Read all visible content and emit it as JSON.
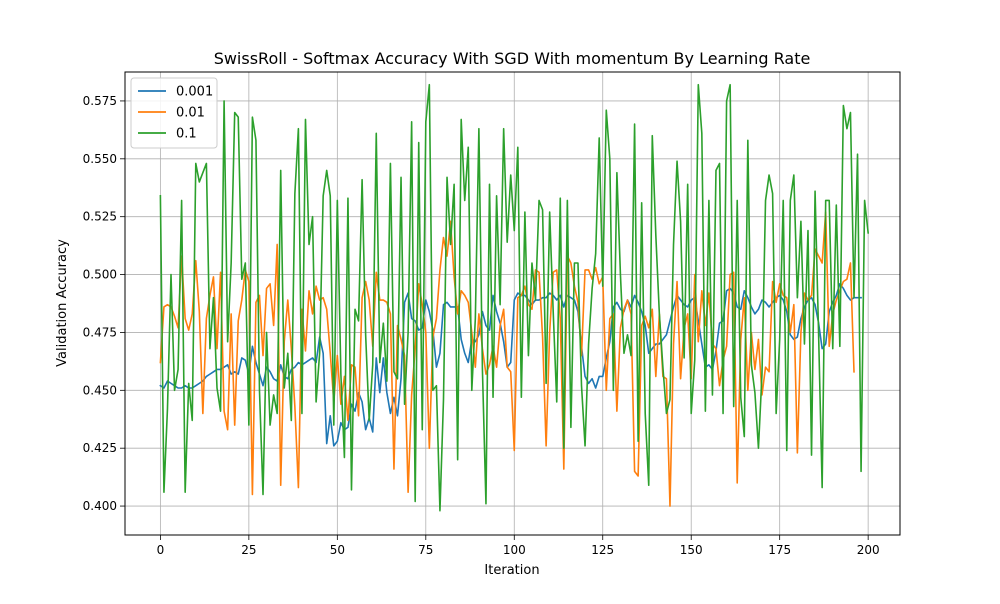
{
  "chart_data": {
    "type": "line",
    "title": "SwissRoll - Softmax Accuracy With SGD With momentum By Learning Rate",
    "xlabel": "Iteration",
    "ylabel": "Validation Accuracy",
    "xlim": [
      -10,
      209
    ],
    "ylim": [
      0.3875,
      0.5875
    ],
    "xticks": [
      0,
      25,
      50,
      75,
      100,
      125,
      150,
      175,
      200
    ],
    "yticks": [
      0.4,
      0.425,
      0.45,
      0.475,
      0.5,
      0.525,
      0.55,
      0.575
    ],
    "xtick_labels": [
      "0",
      "25",
      "50",
      "75",
      "100",
      "125",
      "150",
      "175",
      "200"
    ],
    "ytick_labels": [
      "0.400",
      "0.425",
      "0.450",
      "0.475",
      "0.500",
      "0.525",
      "0.550",
      "0.575"
    ],
    "grid": true,
    "legend_position": "top-left",
    "series": [
      {
        "name": "0.001",
        "color": "#1f77b4",
        "values": [
          0.452,
          0.451,
          0.454,
          0.453,
          0.452,
          0.451,
          0.451,
          0.452,
          0.451,
          0.451,
          0.452,
          0.453,
          0.454,
          0.456,
          0.457,
          0.458,
          0.459,
          0.459,
          0.46,
          0.461,
          0.457,
          0.458,
          0.457,
          0.464,
          0.463,
          0.457,
          0.469,
          0.462,
          0.457,
          0.452,
          0.46,
          0.458,
          0.455,
          0.454,
          0.461,
          0.456,
          0.455,
          0.459,
          0.46,
          0.462,
          0.461,
          0.462,
          0.463,
          0.464,
          0.462,
          0.473,
          0.466,
          0.427,
          0.439,
          0.426,
          0.428,
          0.436,
          0.433,
          0.434,
          0.444,
          0.441,
          0.449,
          0.445,
          0.433,
          0.438,
          0.432,
          0.464,
          0.449,
          0.464,
          0.449,
          0.44,
          0.447,
          0.439,
          0.455,
          0.488,
          0.492,
          0.481,
          0.48,
          0.476,
          0.477,
          0.489,
          0.484,
          0.476,
          0.46,
          0.466,
          0.487,
          0.488,
          0.486,
          0.486,
          0.486,
          0.472,
          0.466,
          0.462,
          0.472,
          0.471,
          0.474,
          0.484,
          0.478,
          0.476,
          0.491,
          0.484,
          0.479,
          0.471,
          0.46,
          0.462,
          0.489,
          0.492,
          0.491,
          0.491,
          0.489,
          0.487,
          0.489,
          0.489,
          0.49,
          0.49,
          0.492,
          0.491,
          0.489,
          0.491,
          0.486,
          0.491,
          0.49,
          0.489,
          0.484,
          0.469,
          0.456,
          0.453,
          0.455,
          0.451,
          0.456,
          0.456,
          0.464,
          0.471,
          0.486,
          0.488,
          0.485,
          0.484,
          0.489,
          0.486,
          0.491,
          0.488,
          0.484,
          0.478,
          0.466,
          0.468,
          0.47,
          0.47,
          0.472,
          0.474,
          0.48,
          0.486,
          0.491,
          0.489,
          0.487,
          0.486,
          0.489,
          0.49,
          0.48,
          0.47,
          0.46,
          0.461,
          0.459,
          0.467,
          0.479,
          0.48,
          0.493,
          0.494,
          0.492,
          0.486,
          0.485,
          0.493,
          0.49,
          0.486,
          0.483,
          0.485,
          0.489,
          0.488,
          0.486,
          0.488,
          0.49,
          0.491,
          0.489,
          0.484,
          0.474,
          0.472,
          0.473,
          0.481,
          0.486,
          0.489,
          0.49,
          0.487,
          0.479,
          0.468,
          0.47,
          0.484,
          0.488,
          0.491,
          0.496,
          0.494,
          0.491,
          0.489,
          0.49,
          0.49,
          0.49
        ]
      },
      {
        "name": "0.01",
        "color": "#ff7f0e",
        "values": [
          0.462,
          0.486,
          0.487,
          0.486,
          0.482,
          0.477,
          0.508,
          0.481,
          0.476,
          0.483,
          0.506,
          0.484,
          0.44,
          0.481,
          0.491,
          0.499,
          0.468,
          0.501,
          0.441,
          0.433,
          0.483,
          0.435,
          0.48,
          0.489,
          0.502,
          0.497,
          0.405,
          0.488,
          0.491,
          0.465,
          0.494,
          0.496,
          0.478,
          0.513,
          0.409,
          0.471,
          0.489,
          0.468,
          0.443,
          0.408,
          0.485,
          0.467,
          0.493,
          0.483,
          0.495,
          0.489,
          0.49,
          0.485,
          0.466,
          0.445,
          0.465,
          0.444,
          0.456,
          0.437,
          0.461,
          0.46,
          0.439,
          0.49,
          0.497,
          0.489,
          0.469,
          0.501,
          0.489,
          0.489,
          0.488,
          0.483,
          0.416,
          0.478,
          0.472,
          0.465,
          0.406,
          0.448,
          0.468,
          0.496,
          0.487,
          0.475,
          0.425,
          0.473,
          0.481,
          0.502,
          0.516,
          0.508,
          0.523,
          0.499,
          0.483,
          0.493,
          0.491,
          0.488,
          0.475,
          0.46,
          0.483,
          0.468,
          0.457,
          0.461,
          0.469,
          0.46,
          0.478,
          0.485,
          0.46,
          0.458,
          0.424,
          0.49,
          0.491,
          0.495,
          0.487,
          0.485,
          0.502,
          0.501,
          0.473,
          0.426,
          0.475,
          0.501,
          0.502,
          0.481,
          0.416,
          0.508,
          0.505,
          0.495,
          0.488,
          0.465,
          0.502,
          0.502,
          0.498,
          0.503,
          0.496,
          0.499,
          0.45,
          0.481,
          0.483,
          0.441,
          0.477,
          0.485,
          0.489,
          0.483,
          0.415,
          0.413,
          0.478,
          0.482,
          0.477,
          0.485,
          0.456,
          0.483,
          0.456,
          0.455,
          0.4,
          0.47,
          0.497,
          0.455,
          0.477,
          0.483,
          0.455,
          0.5,
          0.471,
          0.493,
          0.478,
          0.492,
          0.47,
          0.468,
          0.452,
          0.463,
          0.469,
          0.5,
          0.501,
          0.41,
          0.472,
          0.49,
          0.45,
          0.475,
          0.459,
          0.472,
          0.448,
          0.46,
          0.458,
          0.497,
          0.488,
          0.496,
          0.491,
          0.49,
          0.475,
          0.487,
          0.423,
          0.475,
          0.492,
          0.489,
          0.491,
          0.511,
          0.508,
          0.505,
          0.527,
          0.469,
          0.483,
          0.489,
          0.493,
          0.497,
          0.498,
          0.505,
          0.458
        ]
      },
      {
        "name": "0.1",
        "color": "#2ca02c",
        "values": [
          0.534,
          0.406,
          0.442,
          0.5,
          0.45,
          0.459,
          0.532,
          0.406,
          0.453,
          0.437,
          0.548,
          0.54,
          0.544,
          0.548,
          0.468,
          0.49,
          0.451,
          0.441,
          0.575,
          0.471,
          0.505,
          0.57,
          0.568,
          0.498,
          0.505,
          0.435,
          0.568,
          0.558,
          0.45,
          0.405,
          0.475,
          0.435,
          0.448,
          0.44,
          0.545,
          0.451,
          0.466,
          0.437,
          0.535,
          0.563,
          0.44,
          0.567,
          0.513,
          0.525,
          0.445,
          0.466,
          0.534,
          0.545,
          0.534,
          0.435,
          0.532,
          0.457,
          0.421,
          0.533,
          0.407,
          0.485,
          0.48,
          0.541,
          0.474,
          0.437,
          0.461,
          0.561,
          0.462,
          0.479,
          0.454,
          0.548,
          0.458,
          0.455,
          0.542,
          0.444,
          0.475,
          0.566,
          0.402,
          0.557,
          0.433,
          0.566,
          0.582,
          0.45,
          0.452,
          0.398,
          0.446,
          0.542,
          0.513,
          0.539,
          0.42,
          0.567,
          0.532,
          0.555,
          0.45,
          0.481,
          0.563,
          0.459,
          0.401,
          0.539,
          0.447,
          0.534,
          0.487,
          0.563,
          0.514,
          0.543,
          0.519,
          0.555,
          0.447,
          0.527,
          0.465,
          0.505,
          0.489,
          0.532,
          0.528,
          0.453,
          0.527,
          0.484,
          0.445,
          0.533,
          0.425,
          0.532,
          0.434,
          0.505,
          0.505,
          0.452,
          0.426,
          0.47,
          0.494,
          0.509,
          0.559,
          0.495,
          0.571,
          0.55,
          0.45,
          0.544,
          0.5,
          0.466,
          0.474,
          0.465,
          0.565,
          0.428,
          0.531,
          0.44,
          0.409,
          0.56,
          0.517,
          0.483,
          0.46,
          0.44,
          0.446,
          0.513,
          0.549,
          0.523,
          0.464,
          0.539,
          0.44,
          0.463,
          0.582,
          0.561,
          0.441,
          0.532,
          0.448,
          0.545,
          0.548,
          0.44,
          0.575,
          0.582,
          0.443,
          0.532,
          0.447,
          0.43,
          0.558,
          0.461,
          0.449,
          0.425,
          0.457,
          0.532,
          0.543,
          0.535,
          0.44,
          0.472,
          0.532,
          0.424,
          0.532,
          0.543,
          0.49,
          0.523,
          0.47,
          0.519,
          0.422,
          0.536,
          0.474,
          0.408,
          0.532,
          0.532,
          0.468,
          0.53,
          0.469,
          0.573,
          0.563,
          0.57,
          0.49,
          0.552,
          0.415,
          0.532,
          0.518
        ]
      }
    ]
  }
}
